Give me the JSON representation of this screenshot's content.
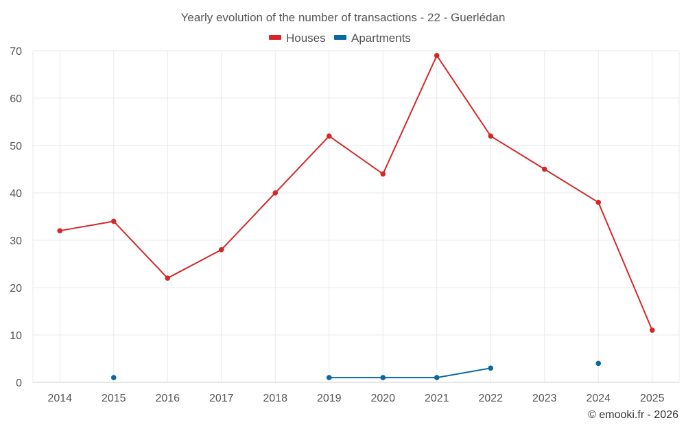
{
  "chart_data": {
    "type": "line",
    "title": "Yearly evolution of the number of transactions - 22 - Guerlédan",
    "categories": [
      "2014",
      "2015",
      "2016",
      "2017",
      "2018",
      "2019",
      "2020",
      "2021",
      "2022",
      "2023",
      "2024",
      "2025"
    ],
    "ylim": [
      0,
      70
    ],
    "yticks": [
      0,
      10,
      20,
      30,
      40,
      50,
      60,
      70
    ],
    "grid": true,
    "legend_position": "top-center",
    "series": [
      {
        "name": "Houses",
        "color": "#d62728",
        "values": [
          32,
          34,
          22,
          28,
          40,
          52,
          44,
          69,
          52,
          45,
          38,
          11
        ]
      },
      {
        "name": "Apartments",
        "color": "#0868a0",
        "values": [
          null,
          1,
          null,
          null,
          null,
          1,
          1,
          1,
          3,
          null,
          4,
          null
        ]
      }
    ]
  },
  "credit": "© emooki.fr - 2026"
}
